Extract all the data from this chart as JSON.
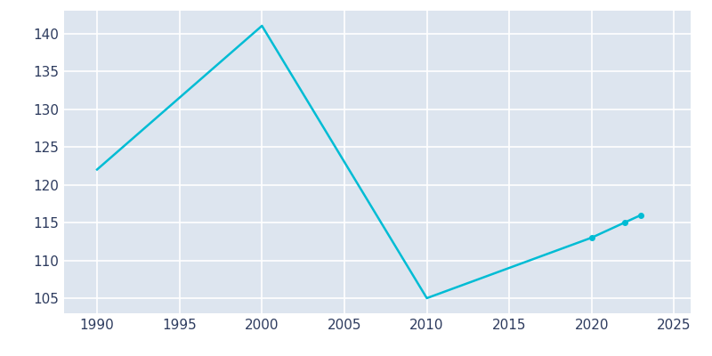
{
  "years": [
    1990,
    2000,
    2010,
    2020,
    2022,
    2023
  ],
  "population": [
    122,
    141,
    105,
    113,
    115,
    116
  ],
  "line_color": "#00BCD4",
  "marker_years": [
    2020,
    2022,
    2023
  ],
  "marker_populations": [
    113,
    115,
    116
  ],
  "plot_bg_color": "#DDE5EF",
  "fig_bg_color": "#FFFFFF",
  "grid_color": "#FFFFFF",
  "tick_color": "#2D3B5E",
  "xlim": [
    1988,
    2026
  ],
  "ylim": [
    103,
    143
  ],
  "xticks": [
    1990,
    1995,
    2000,
    2005,
    2010,
    2015,
    2020,
    2025
  ],
  "yticks": [
    105,
    110,
    115,
    120,
    125,
    130,
    135,
    140
  ],
  "linewidth": 1.8,
  "marker_size": 4,
  "tick_fontsize": 11
}
